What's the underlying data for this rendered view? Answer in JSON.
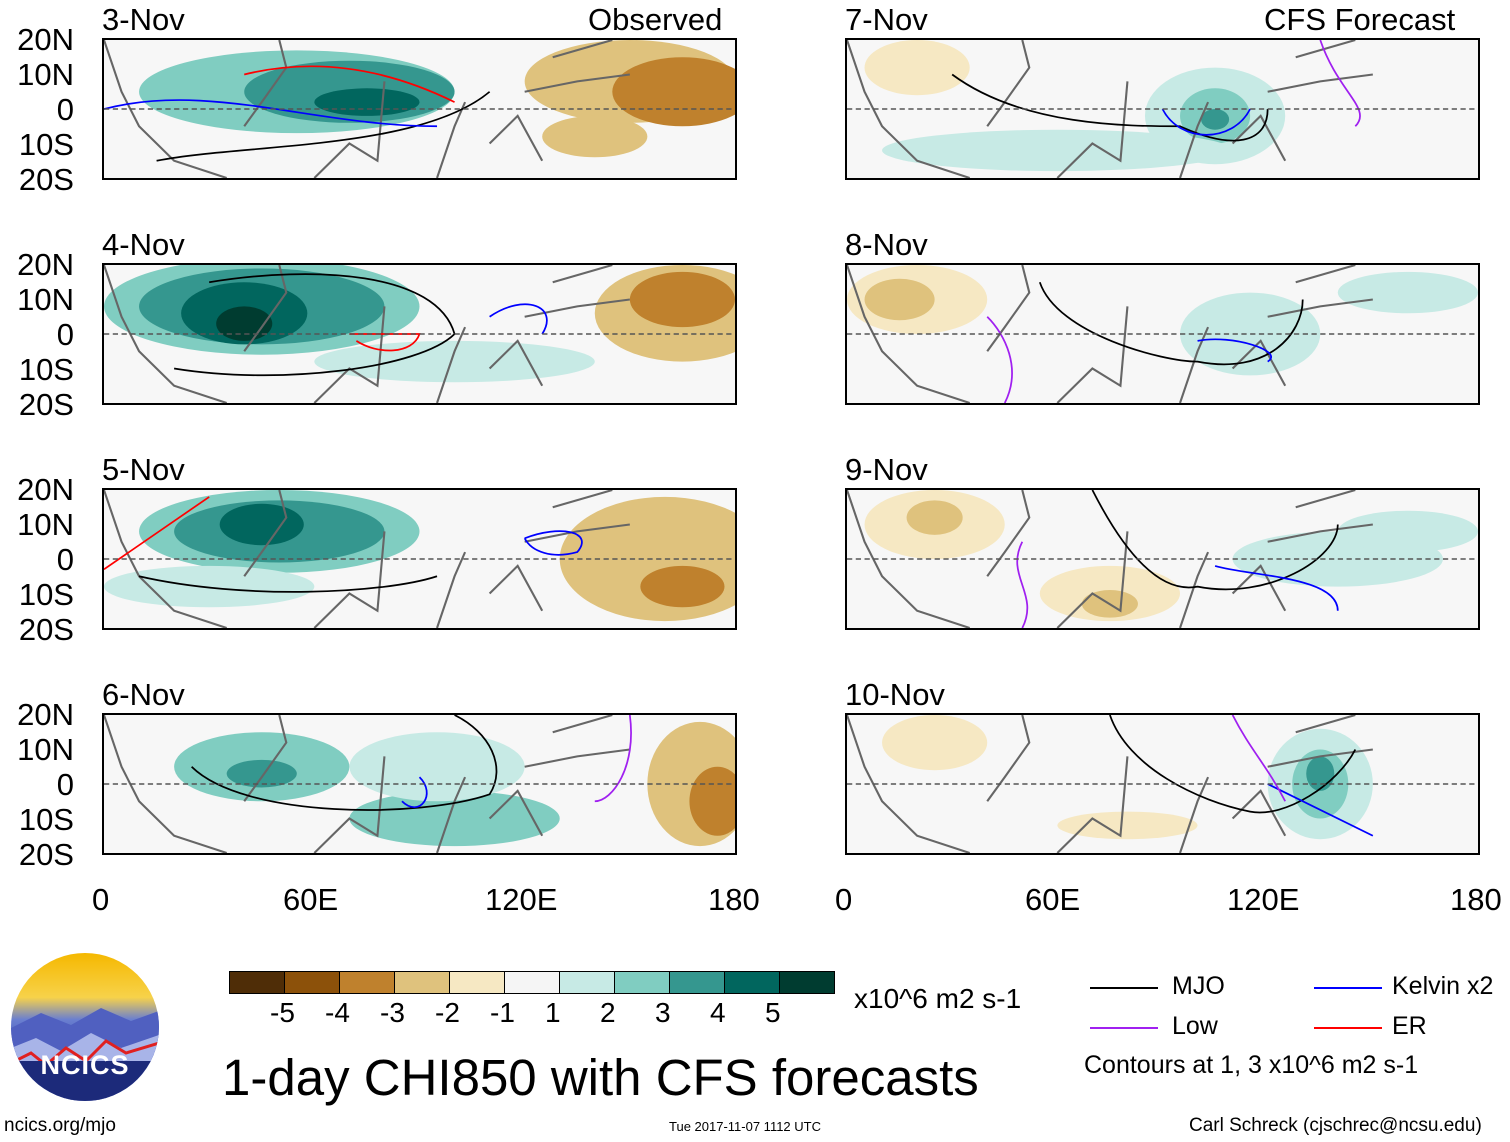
{
  "title": "1-day CHI850 with CFS forecasts",
  "units": "x10^6 m2 s-1",
  "observed_label": "Observed",
  "forecast_label": "CFS Forecast",
  "panels": [
    {
      "date": "3-Nov",
      "type": "observed"
    },
    {
      "date": "4-Nov",
      "type": "observed"
    },
    {
      "date": "5-Nov",
      "type": "observed"
    },
    {
      "date": "6-Nov",
      "type": "observed"
    },
    {
      "date": "7-Nov",
      "type": "forecast"
    },
    {
      "date": "8-Nov",
      "type": "forecast"
    },
    {
      "date": "9-Nov",
      "type": "forecast"
    },
    {
      "date": "10-Nov",
      "type": "forecast"
    }
  ],
  "lat_labels": [
    "20N",
    "10N",
    "0",
    "10S",
    "20S"
  ],
  "lon_labels": [
    "0",
    "60E",
    "120E",
    "180"
  ],
  "colorbar": {
    "labels": [
      "-5",
      "-4",
      "-3",
      "-2",
      "-1",
      "1",
      "2",
      "3",
      "4",
      "5"
    ],
    "colors": [
      "#4f2d07",
      "#8c510a",
      "#bf812d",
      "#dfc27d",
      "#f6e8c3",
      "#f5f5f5",
      "#c7eae5",
      "#80cdc1",
      "#35978f",
      "#01665e",
      "#003c30"
    ]
  },
  "legend": [
    {
      "label": "MJO",
      "color": "#000000"
    },
    {
      "label": "Kelvin x2",
      "color": "#0000ff"
    },
    {
      "label": "Low",
      "color": "#a020f0"
    },
    {
      "label": "ER",
      "color": "#ff0000"
    }
  ],
  "contour_note": "Contours at 1, 3 x10^6 m2 s-1",
  "logo_text": "NCICS",
  "footer": {
    "url": "ncics.org/mjo",
    "timestamp": "Tue 2017-11-07 1112 UTC",
    "credit": "Carl Schreck (cjschrec@ncsu.edu)"
  }
}
